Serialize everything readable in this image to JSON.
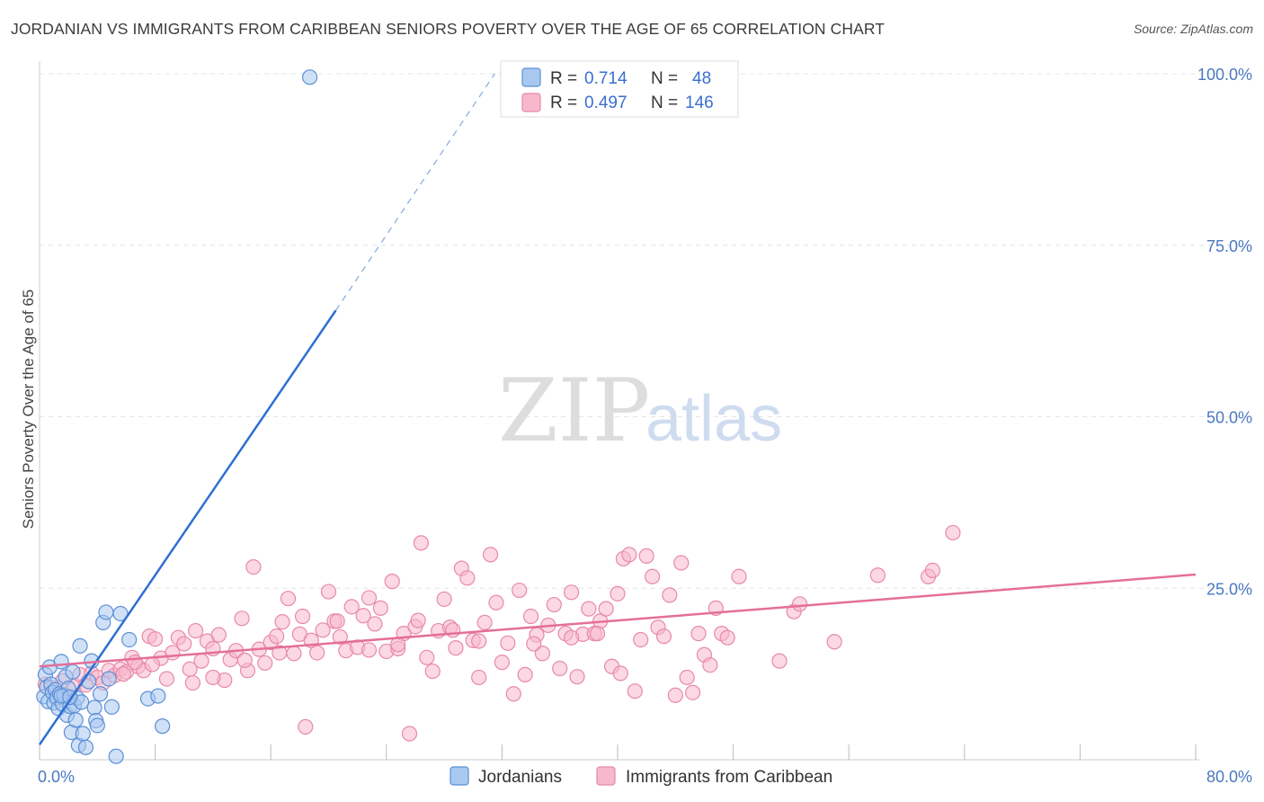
{
  "header": {
    "title": "JORDANIAN VS IMMIGRANTS FROM CARIBBEAN SENIORS POVERTY OVER THE AGE OF 65 CORRELATION CHART",
    "source": "Source: ZipAtlas.com"
  },
  "watermark": {
    "zip": "ZIP",
    "atlas": "atlas"
  },
  "colors": {
    "blue_fill": "#a9c8f0",
    "blue_stroke": "#5b8fd6",
    "blue_line": "#2f6fd1",
    "pink_fill": "#f7b8cc",
    "pink_stroke": "#e889a8",
    "pink_line": "#e46f98",
    "grid": "#e4e4e4",
    "tick_label": "#4a78c2"
  },
  "legend": {
    "r_label": "R =",
    "n_label": "N =",
    "series": [
      {
        "r": "0.714",
        "n": "48"
      },
      {
        "r": "0.497",
        "n": "146"
      }
    ]
  },
  "chart_data": {
    "type": "scatter",
    "title": "JORDANIAN VS IMMIGRANTS FROM CARIBBEAN SENIORS POVERTY OVER THE AGE OF 65 CORRELATION CHART",
    "ylabel": "Seniors Poverty Over the Age of 65",
    "xlabel": "",
    "xlim": [
      0,
      80
    ],
    "ylim": [
      0,
      100
    ],
    "x_tick_labels": [
      "0.0%",
      "80.0%"
    ],
    "y_tick_labels": [
      "100.0%",
      "75.0%",
      "50.0%",
      "25.0%"
    ],
    "y_tick_values": [
      100,
      75,
      50,
      25
    ],
    "grid": true,
    "series": [
      {
        "name": "Jordanians",
        "r": 0.714,
        "n": 48,
        "trend": {
          "x0": 0,
          "y0": 2.2,
          "x1": 20.5,
          "y1": 65.5,
          "dash_x1": 31.5,
          "dash_y1": 100
        },
        "points": [
          [
            0.3,
            9.2
          ],
          [
            0.4,
            12.4
          ],
          [
            0.5,
            10.6
          ],
          [
            0.6,
            8.5
          ],
          [
            0.7,
            13.5
          ],
          [
            0.8,
            11.0
          ],
          [
            0.9,
            9.8
          ],
          [
            1.0,
            8.3
          ],
          [
            1.1,
            10.2
          ],
          [
            1.2,
            9.0
          ],
          [
            1.3,
            7.5
          ],
          [
            1.4,
            9.6
          ],
          [
            1.5,
            14.3
          ],
          [
            1.6,
            8.1
          ],
          [
            1.7,
            9.4
          ],
          [
            1.8,
            12.1
          ],
          [
            1.9,
            6.5
          ],
          [
            2.0,
            10.4
          ],
          [
            2.1,
            7.8
          ],
          [
            2.2,
            4.0
          ],
          [
            2.3,
            12.8
          ],
          [
            2.4,
            7.9
          ],
          [
            2.5,
            5.8
          ],
          [
            2.6,
            9.0
          ],
          [
            2.7,
            2.1
          ],
          [
            2.8,
            16.6
          ],
          [
            2.9,
            8.4
          ],
          [
            3.0,
            3.8
          ],
          [
            3.2,
            1.8
          ],
          [
            3.4,
            11.4
          ],
          [
            3.6,
            14.4
          ],
          [
            3.8,
            7.6
          ],
          [
            3.9,
            5.7
          ],
          [
            4.0,
            5.0
          ],
          [
            4.2,
            9.6
          ],
          [
            4.4,
            20.0
          ],
          [
            4.6,
            21.5
          ],
          [
            4.8,
            11.8
          ],
          [
            5.0,
            7.7
          ],
          [
            5.3,
            0.5
          ],
          [
            5.6,
            21.3
          ],
          [
            6.2,
            17.5
          ],
          [
            7.5,
            8.9
          ],
          [
            8.2,
            9.3
          ],
          [
            8.5,
            4.9
          ],
          [
            18.7,
            99.5
          ],
          [
            1.5,
            9.3
          ],
          [
            2.1,
            9.1
          ]
        ]
      },
      {
        "name": "Immigrants from Caribbean",
        "r": 0.497,
        "n": 146,
        "trend": {
          "x0": 0,
          "y0": 13.6,
          "x1": 80,
          "y1": 27.0
        },
        "points": [
          [
            0.4,
            11.0
          ],
          [
            0.8,
            10.5
          ],
          [
            1.2,
            9.8
          ],
          [
            1.6,
            11.5
          ],
          [
            2.0,
            9.2
          ],
          [
            2.4,
            10.8
          ],
          [
            2.8,
            12.4
          ],
          [
            3.2,
            10.9
          ],
          [
            3.6,
            12.6
          ],
          [
            4.0,
            12.0
          ],
          [
            4.4,
            11.2
          ],
          [
            4.8,
            13.0
          ],
          [
            5.2,
            12.3
          ],
          [
            5.6,
            13.2
          ],
          [
            6.0,
            12.8
          ],
          [
            6.4,
            14.9
          ],
          [
            6.8,
            13.6
          ],
          [
            7.2,
            13.0
          ],
          [
            7.6,
            18.0
          ],
          [
            8.0,
            17.6
          ],
          [
            8.4,
            14.8
          ],
          [
            8.8,
            11.8
          ],
          [
            9.2,
            15.6
          ],
          [
            9.6,
            17.8
          ],
          [
            10.0,
            16.9
          ],
          [
            10.4,
            13.2
          ],
          [
            10.8,
            18.8
          ],
          [
            11.2,
            14.4
          ],
          [
            11.6,
            17.3
          ],
          [
            12.0,
            16.2
          ],
          [
            12.4,
            18.2
          ],
          [
            12.8,
            11.6
          ],
          [
            13.2,
            14.6
          ],
          [
            13.6,
            15.9
          ],
          [
            14.0,
            20.6
          ],
          [
            14.4,
            13.0
          ],
          [
            14.8,
            28.1
          ],
          [
            15.2,
            16.1
          ],
          [
            15.6,
            14.1
          ],
          [
            16.0,
            17.1
          ],
          [
            16.4,
            18.0
          ],
          [
            16.8,
            20.1
          ],
          [
            17.2,
            23.5
          ],
          [
            17.6,
            15.5
          ],
          [
            18.0,
            18.3
          ],
          [
            18.4,
            4.8
          ],
          [
            18.8,
            17.4
          ],
          [
            19.2,
            15.6
          ],
          [
            19.6,
            18.9
          ],
          [
            20.0,
            24.5
          ],
          [
            20.4,
            20.2
          ],
          [
            20.8,
            17.9
          ],
          [
            21.2,
            15.9
          ],
          [
            21.6,
            22.3
          ],
          [
            22.0,
            16.4
          ],
          [
            22.4,
            21.0
          ],
          [
            22.8,
            23.6
          ],
          [
            23.2,
            19.8
          ],
          [
            23.6,
            22.1
          ],
          [
            24.0,
            15.8
          ],
          [
            24.4,
            26.0
          ],
          [
            24.8,
            16.2
          ],
          [
            25.2,
            18.4
          ],
          [
            25.6,
            3.8
          ],
          [
            26.0,
            19.4
          ],
          [
            26.4,
            31.6
          ],
          [
            26.8,
            14.9
          ],
          [
            27.2,
            12.9
          ],
          [
            27.6,
            18.8
          ],
          [
            28.0,
            23.4
          ],
          [
            28.4,
            19.3
          ],
          [
            28.8,
            16.3
          ],
          [
            29.2,
            27.9
          ],
          [
            29.6,
            26.5
          ],
          [
            30.0,
            17.4
          ],
          [
            30.4,
            12.0
          ],
          [
            30.8,
            20.0
          ],
          [
            31.2,
            29.9
          ],
          [
            31.6,
            22.9
          ],
          [
            32.0,
            14.2
          ],
          [
            32.4,
            17.0
          ],
          [
            32.8,
            9.6
          ],
          [
            33.2,
            24.7
          ],
          [
            33.6,
            12.4
          ],
          [
            34.0,
            20.9
          ],
          [
            34.4,
            18.2
          ],
          [
            34.8,
            15.5
          ],
          [
            35.2,
            19.6
          ],
          [
            35.6,
            22.6
          ],
          [
            36.0,
            13.3
          ],
          [
            36.4,
            18.4
          ],
          [
            36.8,
            24.4
          ],
          [
            37.2,
            12.1
          ],
          [
            37.6,
            18.3
          ],
          [
            38.0,
            22.0
          ],
          [
            38.4,
            18.4
          ],
          [
            38.8,
            20.2
          ],
          [
            39.2,
            22.0
          ],
          [
            39.6,
            13.6
          ],
          [
            40.0,
            24.2
          ],
          [
            40.4,
            29.3
          ],
          [
            40.8,
            29.9
          ],
          [
            41.2,
            10.0
          ],
          [
            41.6,
            17.5
          ],
          [
            42.0,
            29.7
          ],
          [
            42.4,
            26.7
          ],
          [
            42.8,
            19.3
          ],
          [
            43.2,
            18.0
          ],
          [
            43.6,
            24.0
          ],
          [
            44.0,
            9.4
          ],
          [
            44.4,
            28.7
          ],
          [
            44.8,
            12.0
          ],
          [
            45.2,
            9.8
          ],
          [
            45.6,
            18.4
          ],
          [
            46.0,
            15.3
          ],
          [
            46.4,
            13.8
          ],
          [
            46.8,
            22.1
          ],
          [
            47.2,
            18.4
          ],
          [
            47.6,
            17.8
          ],
          [
            48.4,
            26.7
          ],
          [
            51.2,
            14.4
          ],
          [
            52.2,
            21.6
          ],
          [
            52.6,
            22.7
          ],
          [
            55.0,
            17.2
          ],
          [
            58.0,
            26.9
          ],
          [
            61.5,
            26.7
          ],
          [
            61.8,
            27.6
          ],
          [
            63.2,
            33.1
          ],
          [
            10.6,
            11.2
          ],
          [
            12.0,
            12.0
          ],
          [
            14.2,
            14.5
          ],
          [
            16.6,
            15.6
          ],
          [
            18.2,
            20.9
          ],
          [
            20.6,
            20.2
          ],
          [
            22.8,
            16.0
          ],
          [
            24.8,
            16.8
          ],
          [
            26.2,
            20.3
          ],
          [
            28.6,
            18.9
          ],
          [
            30.4,
            17.3
          ],
          [
            34.2,
            16.9
          ],
          [
            36.8,
            17.8
          ],
          [
            38.6,
            18.4
          ],
          [
            40.2,
            12.6
          ],
          [
            5.8,
            12.5
          ],
          [
            6.6,
            14.2
          ],
          [
            7.8,
            13.9
          ]
        ]
      }
    ]
  },
  "bottom_legend": [
    {
      "label": "Jordanians"
    },
    {
      "label": "Immigrants from Caribbean"
    }
  ]
}
